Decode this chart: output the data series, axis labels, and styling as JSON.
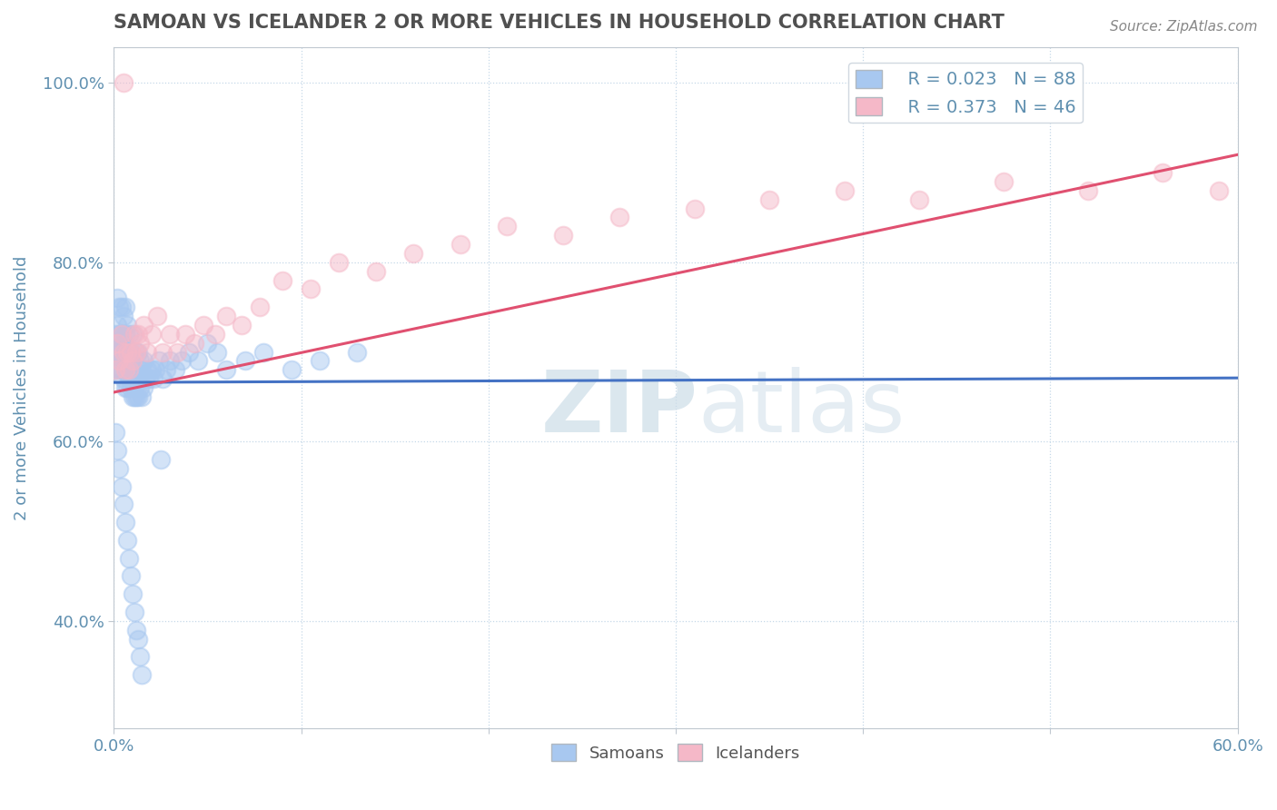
{
  "title": "SAMOAN VS ICELANDER 2 OR MORE VEHICLES IN HOUSEHOLD CORRELATION CHART",
  "source": "Source: ZipAtlas.com",
  "ylabel": "2 or more Vehicles in Household",
  "xlim": [
    0.0,
    0.6
  ],
  "ylim": [
    0.28,
    1.04
  ],
  "xticks": [
    0.0,
    0.1,
    0.2,
    0.3,
    0.4,
    0.5,
    0.6
  ],
  "xticklabels": [
    "0.0%",
    "",
    "",
    "",
    "",
    "",
    "60.0%"
  ],
  "yticks": [
    0.4,
    0.6,
    0.8,
    1.0
  ],
  "yticklabels": [
    "40.0%",
    "60.0%",
    "80.0%",
    "100.0%"
  ],
  "legend_r1": "R = 0.023",
  "legend_n1": "N = 88",
  "legend_r2": "R = 0.373",
  "legend_n2": "N = 46",
  "color_samoan": "#a8c8f0",
  "color_icelander": "#f5b8c8",
  "color_trend_samoan": "#4472c4",
  "color_trend_icelander": "#e05070",
  "legend_label1": "Samoans",
  "legend_label2": "Icelanders",
  "title_color": "#505050",
  "axis_color": "#6090b0",
  "watermark_zip": "ZIP",
  "watermark_atlas": "atlas",
  "samoan_x": [
    0.001,
    0.001,
    0.002,
    0.002,
    0.002,
    0.003,
    0.003,
    0.003,
    0.003,
    0.004,
    0.004,
    0.004,
    0.004,
    0.005,
    0.005,
    0.005,
    0.005,
    0.006,
    0.006,
    0.006,
    0.006,
    0.006,
    0.007,
    0.007,
    0.007,
    0.007,
    0.008,
    0.008,
    0.008,
    0.009,
    0.009,
    0.009,
    0.01,
    0.01,
    0.01,
    0.01,
    0.011,
    0.011,
    0.012,
    0.012,
    0.012,
    0.013,
    0.013,
    0.013,
    0.014,
    0.014,
    0.015,
    0.015,
    0.016,
    0.016,
    0.017,
    0.018,
    0.019,
    0.02,
    0.021,
    0.022,
    0.024,
    0.026,
    0.028,
    0.03,
    0.033,
    0.036,
    0.04,
    0.045,
    0.05,
    0.055,
    0.06,
    0.07,
    0.08,
    0.095,
    0.11,
    0.13,
    0.001,
    0.002,
    0.003,
    0.004,
    0.005,
    0.006,
    0.007,
    0.008,
    0.009,
    0.01,
    0.011,
    0.012,
    0.013,
    0.014,
    0.015,
    0.025
  ],
  "samoan_y": [
    0.68,
    0.72,
    0.7,
    0.73,
    0.76,
    0.68,
    0.7,
    0.72,
    0.75,
    0.68,
    0.7,
    0.72,
    0.75,
    0.67,
    0.69,
    0.71,
    0.74,
    0.66,
    0.68,
    0.7,
    0.72,
    0.75,
    0.66,
    0.68,
    0.7,
    0.73,
    0.67,
    0.69,
    0.72,
    0.66,
    0.68,
    0.7,
    0.65,
    0.67,
    0.69,
    0.72,
    0.65,
    0.68,
    0.65,
    0.67,
    0.7,
    0.65,
    0.67,
    0.7,
    0.66,
    0.69,
    0.65,
    0.68,
    0.66,
    0.69,
    0.67,
    0.68,
    0.67,
    0.68,
    0.67,
    0.68,
    0.69,
    0.67,
    0.68,
    0.69,
    0.68,
    0.69,
    0.7,
    0.69,
    0.71,
    0.7,
    0.68,
    0.69,
    0.7,
    0.68,
    0.69,
    0.7,
    0.61,
    0.59,
    0.57,
    0.55,
    0.53,
    0.51,
    0.49,
    0.47,
    0.45,
    0.43,
    0.41,
    0.39,
    0.38,
    0.36,
    0.34,
    0.58
  ],
  "icelander_x": [
    0.001,
    0.002,
    0.003,
    0.004,
    0.005,
    0.006,
    0.007,
    0.008,
    0.009,
    0.01,
    0.011,
    0.012,
    0.013,
    0.014,
    0.016,
    0.018,
    0.02,
    0.023,
    0.026,
    0.03,
    0.034,
    0.038,
    0.043,
    0.048,
    0.054,
    0.06,
    0.068,
    0.078,
    0.09,
    0.105,
    0.12,
    0.14,
    0.16,
    0.185,
    0.21,
    0.24,
    0.27,
    0.31,
    0.35,
    0.39,
    0.43,
    0.475,
    0.52,
    0.56,
    0.59,
    0.005
  ],
  "icelander_y": [
    0.68,
    0.71,
    0.69,
    0.72,
    0.7,
    0.68,
    0.7,
    0.68,
    0.7,
    0.69,
    0.72,
    0.7,
    0.72,
    0.71,
    0.73,
    0.7,
    0.72,
    0.74,
    0.7,
    0.72,
    0.7,
    0.72,
    0.71,
    0.73,
    0.72,
    0.74,
    0.73,
    0.75,
    0.78,
    0.77,
    0.8,
    0.79,
    0.81,
    0.82,
    0.84,
    0.83,
    0.85,
    0.86,
    0.87,
    0.88,
    0.87,
    0.89,
    0.88,
    0.9,
    0.88,
    1.0
  ]
}
